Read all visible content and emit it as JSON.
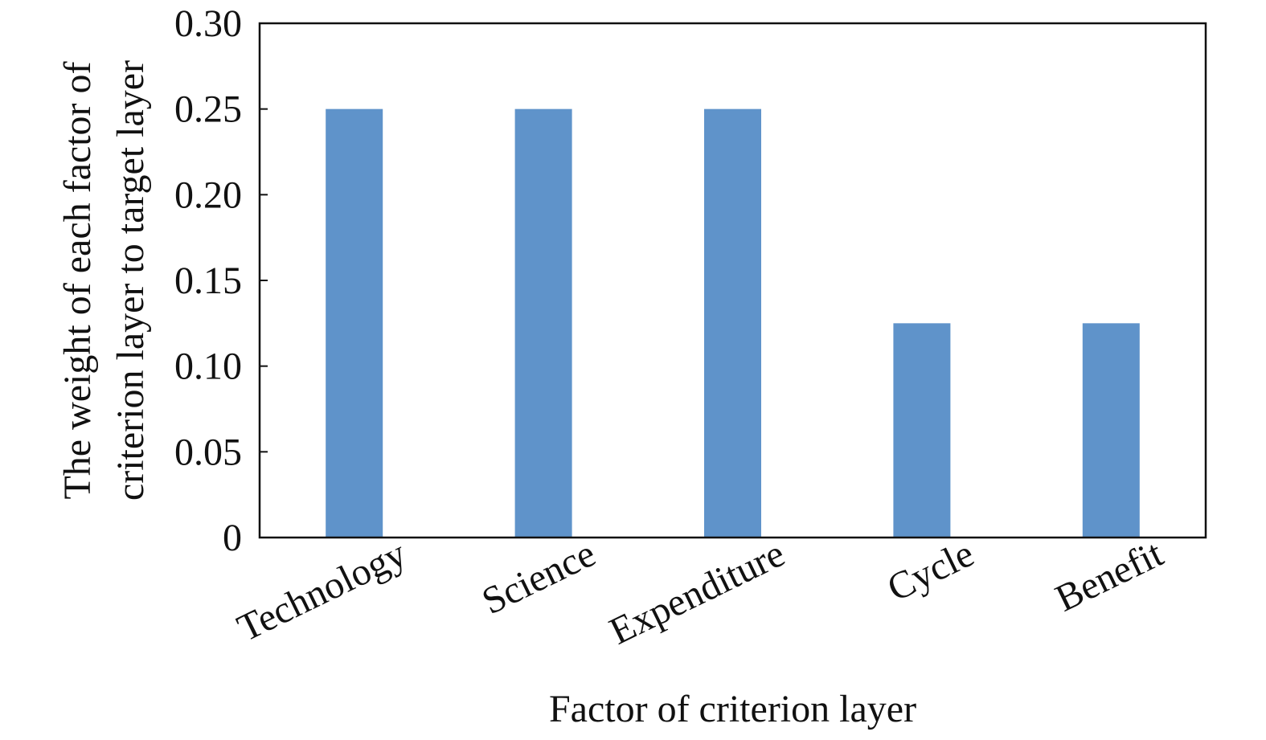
{
  "chart_data": {
    "type": "bar",
    "categories": [
      "Technology",
      "Science",
      "Expenditure",
      "Cycle",
      "Benefit"
    ],
    "values": [
      0.25,
      0.25,
      0.25,
      0.125,
      0.125
    ],
    "xlabel": "Factor of criterion layer",
    "ylabel_lines": [
      "The weight of each factor of",
      "criterion layer to target layer"
    ],
    "ylim": [
      0,
      0.3
    ],
    "yticks": [
      "0",
      "0.05",
      "0.10",
      "0.15",
      "0.20",
      "0.25",
      "0.30"
    ],
    "bar_color": "#5f93ca",
    "grid": false,
    "legend": "none"
  }
}
